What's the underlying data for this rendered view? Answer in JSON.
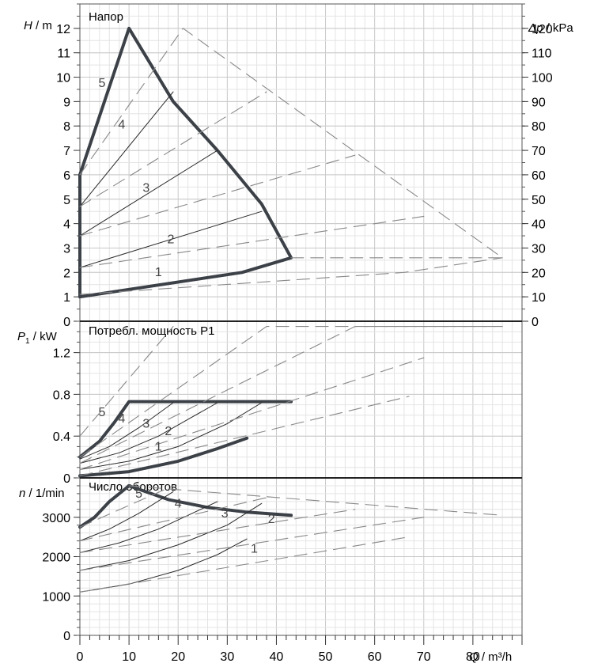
{
  "chart_data": [
    {
      "type": "line",
      "title": "Напор",
      "ylabel_italic": "H",
      "ylabel_unit": " / m",
      "ylabel2_italic": "Δp",
      "ylabel2_unit": " / kPa",
      "ylim": [
        0,
        13
      ],
      "y2lim": [
        0,
        130
      ],
      "xlim": [
        0,
        90
      ],
      "yticks": [
        0,
        1,
        2,
        3,
        4,
        5,
        6,
        7,
        8,
        9,
        10,
        11,
        12
      ],
      "y2ticks": [
        0,
        10,
        20,
        30,
        40,
        50,
        60,
        70,
        80,
        90,
        100,
        110,
        120
      ],
      "grid": true,
      "curve_labels": [
        {
          "text": "1",
          "x": 16,
          "y": 1.85
        },
        {
          "text": "2",
          "x": 18.5,
          "y": 3.2
        },
        {
          "text": "3",
          "x": 13.5,
          "y": 5.3
        },
        {
          "text": "4",
          "x": 8.5,
          "y": 7.9
        },
        {
          "text": "5",
          "x": 4.5,
          "y": 9.6
        }
      ],
      "series": [
        {
          "style": "envelope",
          "x": [
            0,
            0,
            10,
            19,
            28,
            37,
            43,
            33,
            0,
            0
          ],
          "y": [
            1,
            6,
            12,
            9,
            7,
            4.8,
            2.6,
            2,
            1,
            1
          ]
        },
        {
          "style": "thin",
          "x": [
            0,
            37
          ],
          "y": [
            2.2,
            4.5
          ]
        },
        {
          "style": "thin",
          "x": [
            0,
            28
          ],
          "y": [
            3.5,
            7
          ]
        },
        {
          "style": "thin",
          "x": [
            0,
            19
          ],
          "y": [
            4.7,
            9.4
          ]
        },
        {
          "style": "dashed",
          "x": [
            0,
            66,
            86
          ],
          "y": [
            1.1,
            2,
            2.6
          ]
        },
        {
          "style": "dashed",
          "x": [
            0,
            70
          ],
          "y": [
            2.2,
            4.3
          ]
        },
        {
          "style": "dashed",
          "x": [
            0,
            56
          ],
          "y": [
            3.5,
            6.8
          ]
        },
        {
          "style": "dashed",
          "x": [
            0,
            38
          ],
          "y": [
            4.7,
            9.4
          ]
        },
        {
          "style": "dashed",
          "x": [
            0,
            21,
            86,
            43
          ],
          "y": [
            6,
            12,
            2.6,
            2.6
          ]
        }
      ]
    },
    {
      "type": "line",
      "title": "Потребл. мощность P1",
      "ylabel_italic": "P",
      "ylabel_sub": "1",
      "ylabel_unit": " / kW",
      "ylim": [
        0,
        1.5
      ],
      "xlim": [
        0,
        90
      ],
      "yticks": [
        0,
        0.4,
        0.8,
        1.2
      ],
      "ytick_labels": [
        "0",
        "0.4",
        "0.8",
        "1.2"
      ],
      "grid": true,
      "curve_labels": [
        {
          "text": "1",
          "x": 16,
          "y": 0.26
        },
        {
          "text": "2",
          "x": 18,
          "y": 0.41
        },
        {
          "text": "3",
          "x": 13.5,
          "y": 0.48
        },
        {
          "text": "4",
          "x": 8.5,
          "y": 0.53
        },
        {
          "text": "5",
          "x": 4.5,
          "y": 0.59
        }
      ],
      "series": [
        {
          "style": "thick",
          "x": [
            0,
            4,
            7,
            10,
            43
          ],
          "y": [
            0.2,
            0.35,
            0.53,
            0.73,
            0.73
          ]
        },
        {
          "style": "thick",
          "x": [
            0,
            10,
            20,
            28,
            34
          ],
          "y": [
            0.02,
            0.06,
            0.16,
            0.28,
            0.38
          ]
        },
        {
          "style": "thin",
          "x": [
            0,
            10,
            20,
            30,
            37
          ],
          "y": [
            0.08,
            0.16,
            0.3,
            0.52,
            0.72
          ]
        },
        {
          "style": "thin",
          "x": [
            0,
            8,
            16,
            22,
            28
          ],
          "y": [
            0.14,
            0.24,
            0.4,
            0.56,
            0.72
          ]
        },
        {
          "style": "thin",
          "x": [
            0,
            6,
            12,
            19
          ],
          "y": [
            0.18,
            0.3,
            0.48,
            0.72
          ]
        },
        {
          "style": "dashed",
          "x": [
            0,
            67
          ],
          "y": [
            0.02,
            0.78
          ]
        },
        {
          "style": "dashed",
          "x": [
            0,
            70
          ],
          "y": [
            0.08,
            1.15
          ]
        },
        {
          "style": "dashed",
          "x": [
            0,
            56,
            86
          ],
          "y": [
            0.14,
            1.45,
            1.45
          ]
        },
        {
          "style": "dashed",
          "x": [
            0,
            38,
            86
          ],
          "y": [
            0.2,
            1.45,
            1.45
          ]
        },
        {
          "style": "dashed",
          "x": [
            0,
            19
          ],
          "y": [
            0.4,
            1.45
          ]
        }
      ]
    },
    {
      "type": "line",
      "title": "Число оборотов",
      "ylabel_italic": "n",
      "ylabel_unit": " / 1/min",
      "xlabel_italic": "Q",
      "xlabel_unit": " / m³/h",
      "ylim": [
        0,
        4000
      ],
      "xlim": [
        0,
        90
      ],
      "yticks": [
        0,
        1000,
        2000,
        3000
      ],
      "xticks": [
        0,
        10,
        20,
        30,
        40,
        50,
        60,
        70,
        80
      ],
      "grid": true,
      "curve_labels": [
        {
          "text": "1",
          "x": 35.5,
          "y": 2100
        },
        {
          "text": "2",
          "x": 39,
          "y": 2850
        },
        {
          "text": "3",
          "x": 29.5,
          "y": 3000
        },
        {
          "text": "4",
          "x": 20,
          "y": 3250
        },
        {
          "text": "5",
          "x": 12,
          "y": 3500
        }
      ],
      "series": [
        {
          "style": "thick",
          "x": [
            0,
            3,
            6,
            10,
            18,
            26,
            34,
            43
          ],
          "y": [
            2750,
            3000,
            3400,
            3800,
            3450,
            3250,
            3130,
            3050
          ]
        },
        {
          "style": "thin",
          "x": [
            0,
            10,
            20,
            28,
            34
          ],
          "y": [
            1100,
            1300,
            1650,
            2050,
            2450
          ]
        },
        {
          "style": "thin",
          "x": [
            0,
            10,
            20,
            30,
            37
          ],
          "y": [
            1650,
            1900,
            2300,
            2800,
            3350
          ]
        },
        {
          "style": "thin",
          "x": [
            0,
            8,
            16,
            22,
            28
          ],
          "y": [
            2100,
            2350,
            2700,
            3050,
            3400
          ]
        },
        {
          "style": "thin",
          "x": [
            0,
            6,
            12,
            19
          ],
          "y": [
            2400,
            2700,
            3100,
            3650
          ]
        },
        {
          "style": "dashed",
          "x": [
            0,
            67
          ],
          "y": [
            1100,
            2500
          ]
        },
        {
          "style": "dashed",
          "x": [
            0,
            70
          ],
          "y": [
            1650,
            3000
          ]
        },
        {
          "style": "dashed",
          "x": [
            0,
            56
          ],
          "y": [
            2100,
            3200
          ]
        },
        {
          "style": "dashed",
          "x": [
            0,
            38
          ],
          "y": [
            2400,
            3500
          ]
        },
        {
          "style": "dashed",
          "x": [
            0,
            19
          ],
          "y": [
            2750,
            3800
          ]
        },
        {
          "style": "dashed",
          "x": [
            10,
            86
          ],
          "y": [
            3800,
            3050
          ]
        }
      ]
    }
  ]
}
